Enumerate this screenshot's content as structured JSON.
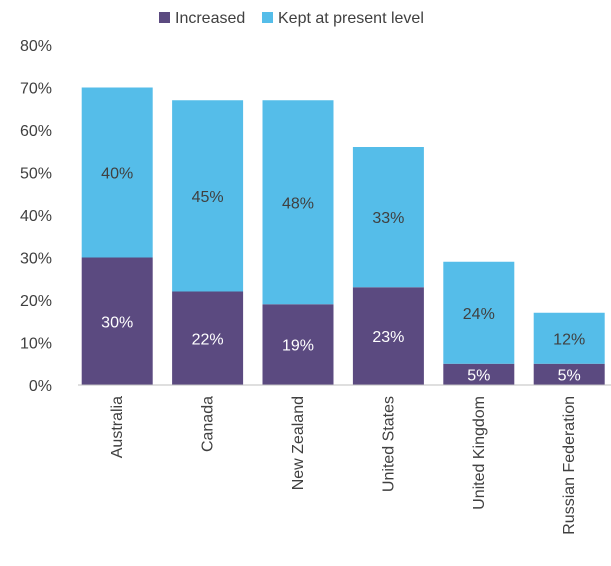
{
  "chart_data": {
    "type": "bar",
    "stacked": true,
    "categories": [
      "Australia",
      "Canada",
      "New Zealand",
      "United States",
      "United Kingdom",
      "Russian Federation"
    ],
    "series": [
      {
        "name": "Increased",
        "color": "#5b4a80",
        "label_color": "#ffffff",
        "values": [
          30,
          22,
          19,
          23,
          5,
          5
        ],
        "labels": [
          "30%",
          "22%",
          "19%",
          "23%",
          "5%",
          "5%"
        ]
      },
      {
        "name": "Kept at present level",
        "color": "#55bde9",
        "label_color": "#404040",
        "values": [
          40,
          45,
          48,
          33,
          24,
          12
        ],
        "labels": [
          "40%",
          "45%",
          "48%",
          "33%",
          "24%",
          "12%"
        ]
      }
    ],
    "ylim": [
      0,
      80
    ],
    "yticks": [
      0,
      10,
      20,
      30,
      40,
      50,
      60,
      70,
      80
    ],
    "ytick_labels": [
      "0%",
      "10%",
      "20%",
      "30%",
      "40%",
      "50%",
      "60%",
      "70%",
      "80%"
    ],
    "grid": false,
    "legend_position": "top"
  }
}
